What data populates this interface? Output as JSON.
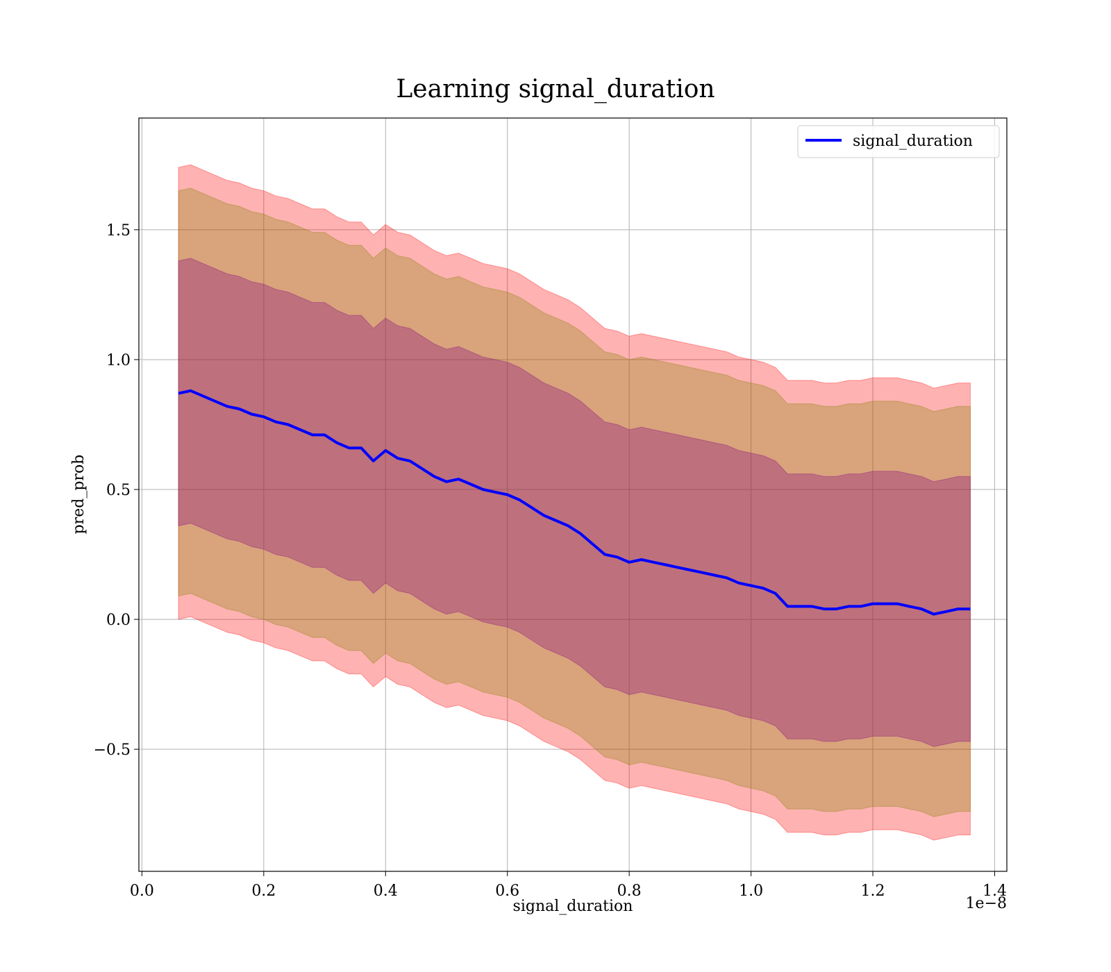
{
  "chart_data": {
    "type": "area",
    "title": "Learning signal_duration",
    "xlabel": "signal_duration",
    "ylabel": "pred_prob",
    "x_offset_label": "1e−8",
    "xlim": [
      -0.005,
      1.42
    ],
    "ylim": [
      -0.97,
      1.93
    ],
    "grid": true,
    "legend": {
      "placement": "top-right",
      "entries": [
        "signal_duration"
      ]
    },
    "x_ticks": [
      0.0,
      0.2,
      0.4,
      0.6,
      0.8,
      1.0,
      1.2,
      1.4
    ],
    "x_tick_labels": [
      "0.0",
      "0.2",
      "0.4",
      "0.6",
      "0.8",
      "1.0",
      "1.2",
      "1.4"
    ],
    "y_ticks": [
      -0.5,
      0.0,
      0.5,
      1.0,
      1.5
    ],
    "y_tick_labels": [
      "−0.5",
      "0.0",
      "0.5",
      "1.0",
      "1.5"
    ],
    "colors": {
      "line": "#0000ff",
      "band_outer": "#ff0000",
      "band_middle": "#808000",
      "band_inner": "#800080"
    },
    "x": [
      0.06,
      0.08,
      0.1,
      0.12,
      0.14,
      0.16,
      0.18,
      0.2,
      0.22,
      0.24,
      0.26,
      0.28,
      0.3,
      0.32,
      0.34,
      0.36,
      0.38,
      0.4,
      0.42,
      0.44,
      0.46,
      0.48,
      0.5,
      0.52,
      0.54,
      0.56,
      0.58,
      0.6,
      0.62,
      0.64,
      0.66,
      0.68,
      0.7,
      0.72,
      0.74,
      0.76,
      0.78,
      0.8,
      0.82,
      0.84,
      0.86,
      0.88,
      0.9,
      0.92,
      0.94,
      0.96,
      0.98,
      1.0,
      1.02,
      1.04,
      1.06,
      1.08,
      1.1,
      1.12,
      1.14,
      1.16,
      1.18,
      1.2,
      1.22,
      1.24,
      1.26,
      1.28,
      1.3,
      1.32,
      1.34,
      1.36
    ],
    "series": [
      {
        "name": "signal_duration",
        "values": [
          0.87,
          0.88,
          0.86,
          0.84,
          0.82,
          0.81,
          0.79,
          0.78,
          0.76,
          0.75,
          0.73,
          0.71,
          0.71,
          0.68,
          0.66,
          0.66,
          0.61,
          0.65,
          0.62,
          0.61,
          0.58,
          0.55,
          0.53,
          0.54,
          0.52,
          0.5,
          0.49,
          0.48,
          0.46,
          0.43,
          0.4,
          0.38,
          0.36,
          0.33,
          0.29,
          0.25,
          0.24,
          0.22,
          0.23,
          0.22,
          0.21,
          0.2,
          0.19,
          0.18,
          0.17,
          0.16,
          0.14,
          0.13,
          0.12,
          0.1,
          0.05,
          0.05,
          0.05,
          0.04,
          0.04,
          0.05,
          0.05,
          0.06,
          0.06,
          0.06,
          0.05,
          0.04,
          0.02,
          0.03,
          0.04,
          0.04
        ],
        "bands": [
          {
            "lower_offset": -0.87,
            "upper_offset": 0.87,
            "color": "band_outer"
          },
          {
            "lower_offset": -0.78,
            "upper_offset": 0.78,
            "color": "band_middle"
          },
          {
            "lower_offset": -0.51,
            "upper_offset": 0.51,
            "color": "band_inner"
          }
        ]
      }
    ]
  }
}
